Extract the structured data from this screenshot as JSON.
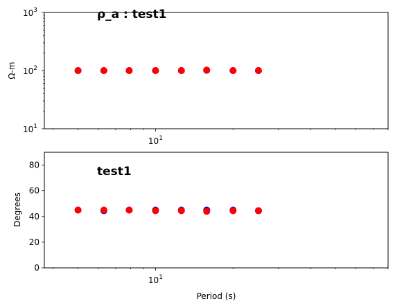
{
  "chart_data": [
    {
      "type": "scatter",
      "title": "ρ_a : test1",
      "xlabel": "",
      "ylabel": "Ω-m",
      "xscale": "log",
      "yscale": "log",
      "xlim": [
        3.7,
        80
      ],
      "ylim": [
        10,
        1000
      ],
      "xticks": [
        {
          "value": 10,
          "base": "10",
          "exp": "1"
        }
      ],
      "yticks": [
        {
          "value": 10,
          "base": "10",
          "exp": "1"
        },
        {
          "value": 100,
          "base": "10",
          "exp": "2"
        },
        {
          "value": 1000,
          "base": "10",
          "exp": "3"
        }
      ],
      "grid": false,
      "series": [
        {
          "color": "#0000ff",
          "x": [
            5.0,
            6.3,
            7.9,
            10.0,
            12.6,
            15.8,
            20.0,
            25.1
          ],
          "y": [
            100,
            100,
            100,
            100,
            100,
            101,
            100,
            100
          ]
        },
        {
          "color": "#ff0000",
          "x": [
            5.0,
            6.3,
            7.9,
            10.0,
            12.6,
            15.8,
            20.0,
            25.1
          ],
          "y": [
            100,
            100,
            100,
            100,
            100,
            102,
            100,
            100
          ]
        }
      ]
    },
    {
      "type": "scatter",
      "title": "test1",
      "xlabel": "Period (s)",
      "ylabel": "Degrees",
      "xscale": "log",
      "yscale": "linear",
      "xlim": [
        3.7,
        80
      ],
      "ylim": [
        0,
        90
      ],
      "xticks": [
        {
          "value": 10,
          "base": "10",
          "exp": "1"
        }
      ],
      "yticks": [
        {
          "value": 0,
          "label": "0"
        },
        {
          "value": 20,
          "label": "20"
        },
        {
          "value": 40,
          "label": "40"
        },
        {
          "value": 60,
          "label": "60"
        },
        {
          "value": 80,
          "label": "80"
        }
      ],
      "grid": false,
      "series": [
        {
          "color": "#0000ff",
          "x": [
            5.0,
            6.3,
            7.9,
            10.0,
            12.6,
            15.8,
            20.0,
            25.1
          ],
          "y": [
            45,
            44.5,
            45,
            45,
            45,
            45,
            45,
            44.5
          ]
        },
        {
          "color": "#ff0000",
          "x": [
            5.0,
            6.3,
            7.9,
            10.0,
            12.6,
            15.8,
            20.0,
            25.1
          ],
          "y": [
            45,
            45,
            45,
            44.5,
            44.5,
            44,
            44.5,
            44.5
          ]
        }
      ]
    }
  ]
}
